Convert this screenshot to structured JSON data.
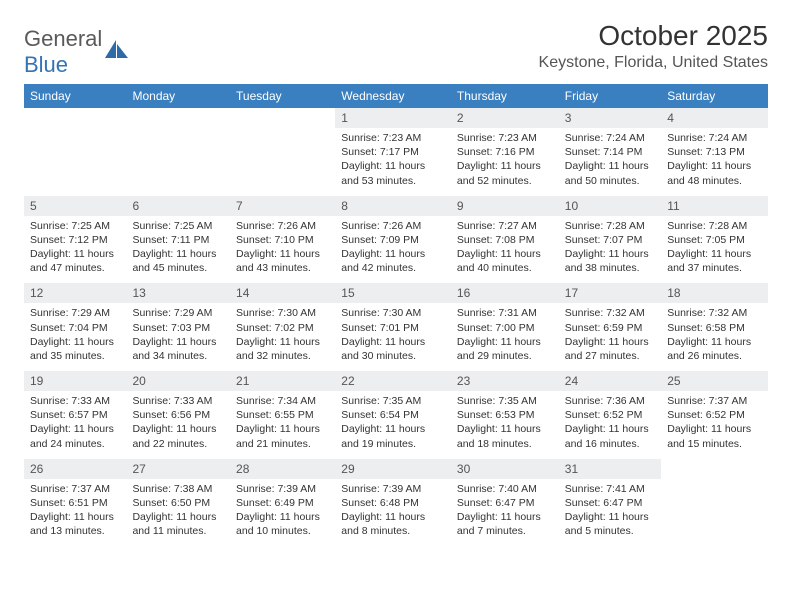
{
  "brand": {
    "part1": "General",
    "part2": "Blue"
  },
  "title": "October 2025",
  "location": "Keystone, Florida, United States",
  "colors": {
    "header_bg": "#3a7fc0",
    "daynum_bg": "#eceeef",
    "rule": "#3a6a9a",
    "logo_blue": "#3474b5"
  },
  "weekdays": [
    "Sunday",
    "Monday",
    "Tuesday",
    "Wednesday",
    "Thursday",
    "Friday",
    "Saturday"
  ],
  "weeks": [
    [
      {
        "n": "",
        "sr": "",
        "ss": "",
        "dl": ""
      },
      {
        "n": "",
        "sr": "",
        "ss": "",
        "dl": ""
      },
      {
        "n": "",
        "sr": "",
        "ss": "",
        "dl": ""
      },
      {
        "n": "1",
        "sr": "Sunrise: 7:23 AM",
        "ss": "Sunset: 7:17 PM",
        "dl": "Daylight: 11 hours and 53 minutes."
      },
      {
        "n": "2",
        "sr": "Sunrise: 7:23 AM",
        "ss": "Sunset: 7:16 PM",
        "dl": "Daylight: 11 hours and 52 minutes."
      },
      {
        "n": "3",
        "sr": "Sunrise: 7:24 AM",
        "ss": "Sunset: 7:14 PM",
        "dl": "Daylight: 11 hours and 50 minutes."
      },
      {
        "n": "4",
        "sr": "Sunrise: 7:24 AM",
        "ss": "Sunset: 7:13 PM",
        "dl": "Daylight: 11 hours and 48 minutes."
      }
    ],
    [
      {
        "n": "5",
        "sr": "Sunrise: 7:25 AM",
        "ss": "Sunset: 7:12 PM",
        "dl": "Daylight: 11 hours and 47 minutes."
      },
      {
        "n": "6",
        "sr": "Sunrise: 7:25 AM",
        "ss": "Sunset: 7:11 PM",
        "dl": "Daylight: 11 hours and 45 minutes."
      },
      {
        "n": "7",
        "sr": "Sunrise: 7:26 AM",
        "ss": "Sunset: 7:10 PM",
        "dl": "Daylight: 11 hours and 43 minutes."
      },
      {
        "n": "8",
        "sr": "Sunrise: 7:26 AM",
        "ss": "Sunset: 7:09 PM",
        "dl": "Daylight: 11 hours and 42 minutes."
      },
      {
        "n": "9",
        "sr": "Sunrise: 7:27 AM",
        "ss": "Sunset: 7:08 PM",
        "dl": "Daylight: 11 hours and 40 minutes."
      },
      {
        "n": "10",
        "sr": "Sunrise: 7:28 AM",
        "ss": "Sunset: 7:07 PM",
        "dl": "Daylight: 11 hours and 38 minutes."
      },
      {
        "n": "11",
        "sr": "Sunrise: 7:28 AM",
        "ss": "Sunset: 7:05 PM",
        "dl": "Daylight: 11 hours and 37 minutes."
      }
    ],
    [
      {
        "n": "12",
        "sr": "Sunrise: 7:29 AM",
        "ss": "Sunset: 7:04 PM",
        "dl": "Daylight: 11 hours and 35 minutes."
      },
      {
        "n": "13",
        "sr": "Sunrise: 7:29 AM",
        "ss": "Sunset: 7:03 PM",
        "dl": "Daylight: 11 hours and 34 minutes."
      },
      {
        "n": "14",
        "sr": "Sunrise: 7:30 AM",
        "ss": "Sunset: 7:02 PM",
        "dl": "Daylight: 11 hours and 32 minutes."
      },
      {
        "n": "15",
        "sr": "Sunrise: 7:30 AM",
        "ss": "Sunset: 7:01 PM",
        "dl": "Daylight: 11 hours and 30 minutes."
      },
      {
        "n": "16",
        "sr": "Sunrise: 7:31 AM",
        "ss": "Sunset: 7:00 PM",
        "dl": "Daylight: 11 hours and 29 minutes."
      },
      {
        "n": "17",
        "sr": "Sunrise: 7:32 AM",
        "ss": "Sunset: 6:59 PM",
        "dl": "Daylight: 11 hours and 27 minutes."
      },
      {
        "n": "18",
        "sr": "Sunrise: 7:32 AM",
        "ss": "Sunset: 6:58 PM",
        "dl": "Daylight: 11 hours and 26 minutes."
      }
    ],
    [
      {
        "n": "19",
        "sr": "Sunrise: 7:33 AM",
        "ss": "Sunset: 6:57 PM",
        "dl": "Daylight: 11 hours and 24 minutes."
      },
      {
        "n": "20",
        "sr": "Sunrise: 7:33 AM",
        "ss": "Sunset: 6:56 PM",
        "dl": "Daylight: 11 hours and 22 minutes."
      },
      {
        "n": "21",
        "sr": "Sunrise: 7:34 AM",
        "ss": "Sunset: 6:55 PM",
        "dl": "Daylight: 11 hours and 21 minutes."
      },
      {
        "n": "22",
        "sr": "Sunrise: 7:35 AM",
        "ss": "Sunset: 6:54 PM",
        "dl": "Daylight: 11 hours and 19 minutes."
      },
      {
        "n": "23",
        "sr": "Sunrise: 7:35 AM",
        "ss": "Sunset: 6:53 PM",
        "dl": "Daylight: 11 hours and 18 minutes."
      },
      {
        "n": "24",
        "sr": "Sunrise: 7:36 AM",
        "ss": "Sunset: 6:52 PM",
        "dl": "Daylight: 11 hours and 16 minutes."
      },
      {
        "n": "25",
        "sr": "Sunrise: 7:37 AM",
        "ss": "Sunset: 6:52 PM",
        "dl": "Daylight: 11 hours and 15 minutes."
      }
    ],
    [
      {
        "n": "26",
        "sr": "Sunrise: 7:37 AM",
        "ss": "Sunset: 6:51 PM",
        "dl": "Daylight: 11 hours and 13 minutes."
      },
      {
        "n": "27",
        "sr": "Sunrise: 7:38 AM",
        "ss": "Sunset: 6:50 PM",
        "dl": "Daylight: 11 hours and 11 minutes."
      },
      {
        "n": "28",
        "sr": "Sunrise: 7:39 AM",
        "ss": "Sunset: 6:49 PM",
        "dl": "Daylight: 11 hours and 10 minutes."
      },
      {
        "n": "29",
        "sr": "Sunrise: 7:39 AM",
        "ss": "Sunset: 6:48 PM",
        "dl": "Daylight: 11 hours and 8 minutes."
      },
      {
        "n": "30",
        "sr": "Sunrise: 7:40 AM",
        "ss": "Sunset: 6:47 PM",
        "dl": "Daylight: 11 hours and 7 minutes."
      },
      {
        "n": "31",
        "sr": "Sunrise: 7:41 AM",
        "ss": "Sunset: 6:47 PM",
        "dl": "Daylight: 11 hours and 5 minutes."
      },
      {
        "n": "",
        "sr": "",
        "ss": "",
        "dl": ""
      }
    ]
  ]
}
